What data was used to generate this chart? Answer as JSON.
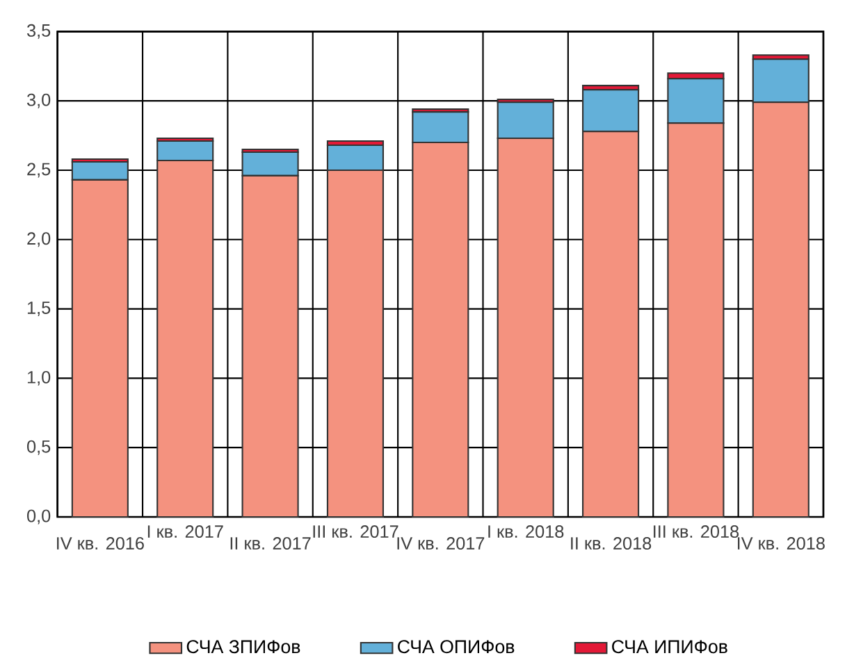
{
  "chart_data": {
    "type": "bar",
    "stacked": true,
    "categories": [
      "IV кв. 2016",
      "I кв. 2017",
      "II кв. 2017",
      "III кв. 2017",
      "IV кв. 2017",
      "I кв. 2018",
      "II кв. 2018",
      "III кв. 2018",
      "IV кв. 2018"
    ],
    "series": [
      {
        "name": "СЧА ЗПИФов",
        "color": "#f4927f",
        "values": [
          2.43,
          2.57,
          2.46,
          2.5,
          2.7,
          2.73,
          2.78,
          2.84,
          2.99
        ]
      },
      {
        "name": "СЧА ОПИФов",
        "color": "#63b0d9",
        "values": [
          0.13,
          0.14,
          0.17,
          0.18,
          0.22,
          0.26,
          0.3,
          0.32,
          0.31
        ]
      },
      {
        "name": "СЧА ИПИФов",
        "color": "#e31937",
        "values": [
          0.02,
          0.02,
          0.02,
          0.03,
          0.02,
          0.02,
          0.03,
          0.04,
          0.03
        ]
      }
    ],
    "ylim": [
      0,
      3.5
    ],
    "yticks": [
      {
        "value": 0,
        "label": "0,0"
      },
      {
        "value": 0.5,
        "label": "0,5"
      },
      {
        "value": 1,
        "label": "1,0"
      },
      {
        "value": 1.5,
        "label": "1,5"
      },
      {
        "value": 2,
        "label": "2,0"
      },
      {
        "value": 2.5,
        "label": "2,5"
      },
      {
        "value": 3,
        "label": "3,0"
      },
      {
        "value": 3.5,
        "label": "3,5"
      }
    ],
    "grid": true,
    "legend": "bottom"
  }
}
